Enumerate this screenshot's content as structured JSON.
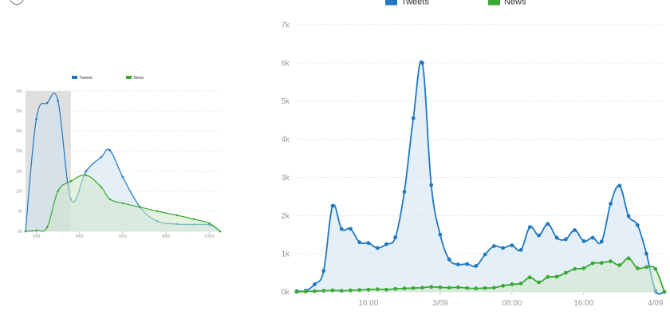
{
  "colors": {
    "tweets": "#1f78c1",
    "news": "#3aaa35",
    "grid": "#e6e6e6",
    "selection": "#d9d9d9"
  },
  "chart_data": [
    {
      "type": "area",
      "title": "",
      "legend": {
        "placement": "top",
        "entries": [
          "Tweets",
          "News"
        ]
      },
      "grid": true,
      "ylim": [
        0,
        35000
      ],
      "y_ticks": [
        "0k",
        "5k",
        "10k",
        "15k",
        "20k",
        "25k",
        "30k",
        "35k"
      ],
      "x_ticks": [
        "2/09",
        "4/09",
        "6/09",
        "8/09",
        "10/09"
      ],
      "x_tick_positions": [
        2,
        4,
        6,
        8,
        10
      ],
      "xlim": [
        1.5,
        10.5
      ],
      "selection": [
        1.5,
        3.6
      ],
      "series": [
        {
          "name": "Tweets",
          "x": [
            1.5,
            2.0,
            2.5,
            3.0,
            3.6,
            4.3,
            5.0,
            5.4,
            6.0,
            6.8,
            7.6,
            8.5,
            9.3,
            10.0,
            10.5
          ],
          "values": [
            0,
            28000,
            32000,
            32500,
            8000,
            15000,
            18500,
            20200,
            13500,
            6000,
            2500,
            1800,
            1700,
            1600,
            0
          ]
        },
        {
          "name": "News",
          "x": [
            1.5,
            2.0,
            2.5,
            3.0,
            3.6,
            4.3,
            5.0,
            5.4,
            6.0,
            6.8,
            7.6,
            8.5,
            9.3,
            10.0,
            10.5
          ],
          "values": [
            0,
            200,
            1000,
            10000,
            12500,
            14000,
            11000,
            8000,
            7000,
            6000,
            5000,
            4000,
            3000,
            2000,
            0
          ]
        }
      ]
    },
    {
      "type": "area",
      "title": "",
      "legend": {
        "placement": "top",
        "entries": [
          "Tweets",
          "News"
        ]
      },
      "grid": true,
      "ylim": [
        0,
        7000
      ],
      "y_ticks": [
        "0k",
        "1k",
        "2k",
        "3k",
        "4k",
        "5k",
        "6k",
        "7k"
      ],
      "x_ticks": [
        "16:00",
        "3/09",
        "08:00",
        "16:00",
        "4/09"
      ],
      "x_tick_positions": [
        8,
        16,
        24,
        32,
        40
      ],
      "xlim": [
        0,
        41
      ],
      "series": [
        {
          "name": "Tweets",
          "x": [
            0,
            1,
            2,
            3,
            4,
            5,
            6,
            7,
            8,
            9,
            10,
            11,
            12,
            13,
            14,
            15,
            16,
            17,
            18,
            19,
            20,
            21,
            22,
            23,
            24,
            25,
            26,
            27,
            28,
            29,
            30,
            31,
            32,
            33,
            34,
            35,
            36,
            37,
            38,
            39,
            40,
            41
          ],
          "values": [
            20,
            30,
            200,
            550,
            2250,
            1650,
            1650,
            1300,
            1280,
            1150,
            1250,
            1430,
            2620,
            4550,
            6000,
            2800,
            1500,
            850,
            720,
            730,
            680,
            980,
            1200,
            1150,
            1220,
            1100,
            1700,
            1480,
            1780,
            1420,
            1380,
            1620,
            1330,
            1420,
            1320,
            2310,
            2780,
            1990,
            1750,
            1000,
            30,
            0
          ]
        },
        {
          "name": "News",
          "x": [
            0,
            1,
            2,
            3,
            4,
            5,
            6,
            7,
            8,
            9,
            10,
            11,
            12,
            13,
            14,
            15,
            16,
            17,
            18,
            19,
            20,
            21,
            22,
            23,
            24,
            25,
            26,
            27,
            28,
            29,
            30,
            31,
            32,
            33,
            34,
            35,
            36,
            37,
            38,
            39,
            40,
            41
          ],
          "values": [
            0,
            10,
            20,
            30,
            40,
            30,
            40,
            50,
            60,
            70,
            60,
            80,
            90,
            100,
            110,
            130,
            120,
            110,
            120,
            100,
            90,
            100,
            110,
            160,
            200,
            220,
            380,
            250,
            390,
            400,
            500,
            600,
            620,
            750,
            760,
            800,
            700,
            880,
            620,
            650,
            600,
            0
          ]
        }
      ]
    }
  ]
}
